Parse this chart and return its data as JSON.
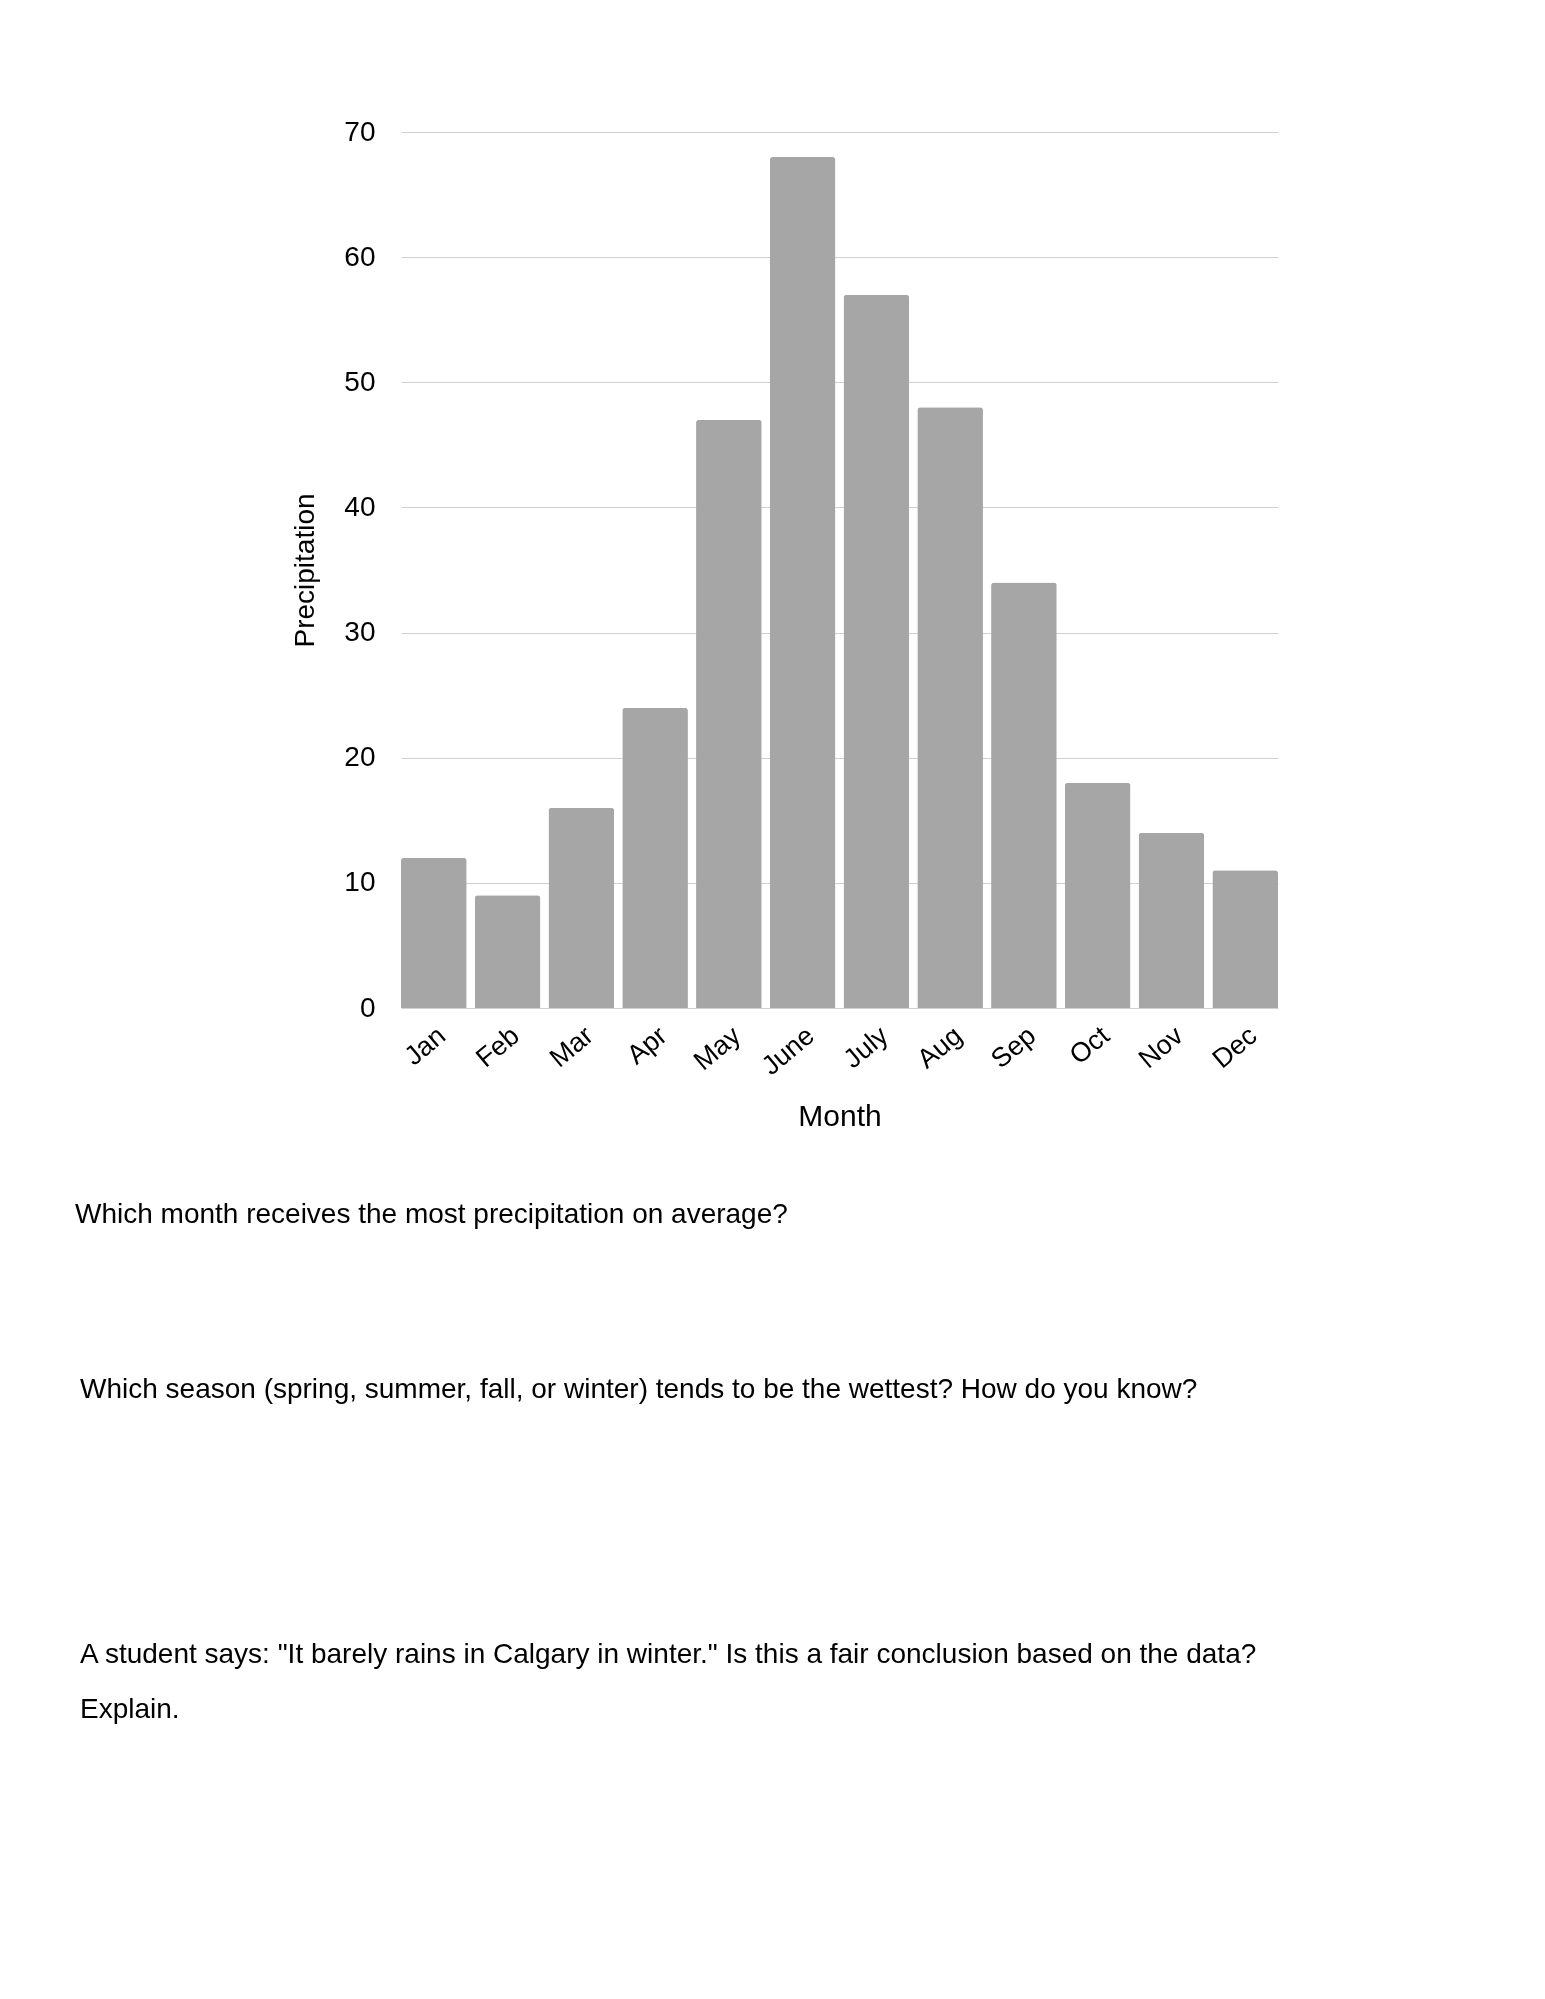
{
  "chart_data": {
    "type": "bar",
    "xlabel": "Month",
    "ylabel": "Precipitation",
    "categories": [
      "Jan",
      "Feb",
      "Mar",
      "Apr",
      "May",
      "June",
      "July",
      "Aug",
      "Sep",
      "Oct",
      "Nov",
      "Dec"
    ],
    "values": [
      12,
      9,
      16,
      24,
      47,
      68,
      57,
      48,
      34,
      18,
      14,
      11
    ],
    "color": "#a6a6a6",
    "ylim": [
      0,
      70
    ],
    "yticks": [
      0,
      10,
      20,
      30,
      40,
      50,
      60,
      70
    ],
    "grid": "y",
    "annotations": [
      "Which month receives the most precipitation on average?",
      "Which season (spring, summer, fall, or winter) tends to be the wettest? How do you know?",
      "A student says: \"It barely rains in Calgary in winter.\" Is this a fair conclusion based on the data? Explain."
    ]
  }
}
